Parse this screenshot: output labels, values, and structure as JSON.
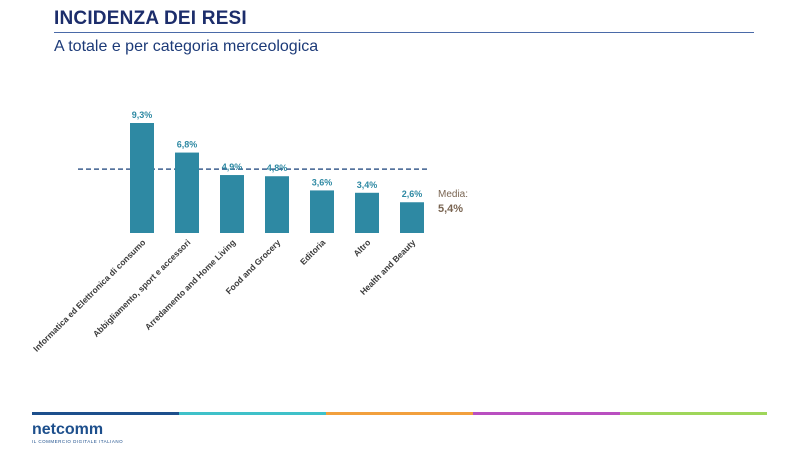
{
  "header": {
    "title": "INCIDENZA DEI RESI",
    "subtitle": "A totale e per categoria merceologica"
  },
  "chart_data": {
    "type": "bar",
    "categories": [
      "Informatica ed Elettronica di consumo",
      "Abbigliamento, sport e accessori",
      "Arredamento and Home Living",
      "Food and Grocery",
      "Editoria",
      "Altro",
      "Health and Beauty"
    ],
    "values": [
      9.3,
      6.8,
      4.9,
      4.8,
      3.6,
      3.4,
      2.6
    ],
    "value_labels": [
      "9,3%",
      "6,8%",
      "4,9%",
      "4,8%",
      "3,6%",
      "3,4%",
      "2,6%"
    ],
    "bar_color": "#2e89a3",
    "reference_line": {
      "value": 5.4,
      "label": "Media:",
      "value_label": "5,4%"
    },
    "ylim": [
      0,
      10
    ],
    "grid": false
  },
  "footer": {
    "logo_text": "netcomm",
    "logo_tagline": "IL COMMERCIO DIGITALE ITALIANO",
    "stripe_colors": [
      "#1d4f8c",
      "#3fc1c9",
      "#f2a03d",
      "#b94fc0",
      "#9fd65a"
    ]
  }
}
